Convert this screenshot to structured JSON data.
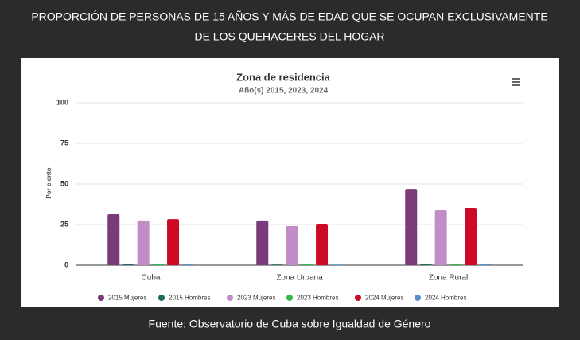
{
  "header": {
    "title_line1": "PROPORCIÓN DE PERSONAS DE 15 AÑOS Y MÁS DE EDAD QUE SE OCUPAN EXCLUSIVAMENTE",
    "title_line2": "DE LOS QUEHACERES DEL HOGAR"
  },
  "footer": {
    "source": "Fuente: Observatorio de Cuba sobre Igualdad de Género"
  },
  "chart_data": {
    "type": "bar",
    "title": "Zona de residencia",
    "subtitle": "Año(s) 2015, 2023, 2024",
    "y_label": "Por ciento",
    "categories": [
      "Cuba",
      "Zona Urbana",
      "Zona Rural"
    ],
    "series": [
      {
        "name": "2015 Mujeres",
        "color": "#7a3b79",
        "values": [
          31.4,
          27.5,
          47
        ]
      },
      {
        "name": "2015 Hombres",
        "color": "#1d6b5c",
        "values": [
          0.5,
          0.4,
          0.5
        ]
      },
      {
        "name": "2023 Mujeres",
        "color": "#c28dc7",
        "values": [
          27.5,
          24,
          33.8
        ]
      },
      {
        "name": "2023 Hombres",
        "color": "#2fb84b",
        "values": [
          0.6,
          0.5,
          1
        ]
      },
      {
        "name": "2024 Mujeres",
        "color": "#cc0a25",
        "values": [
          28.4,
          25.5,
          35.3
        ]
      },
      {
        "name": "2024 Hombres",
        "color": "#5b8fc9",
        "values": [
          0.5,
          0.4,
          0.6
        ]
      }
    ],
    "ylim": [
      0,
      100
    ],
    "yticks": [
      0,
      25,
      50,
      75,
      100
    ],
    "grid": true
  }
}
